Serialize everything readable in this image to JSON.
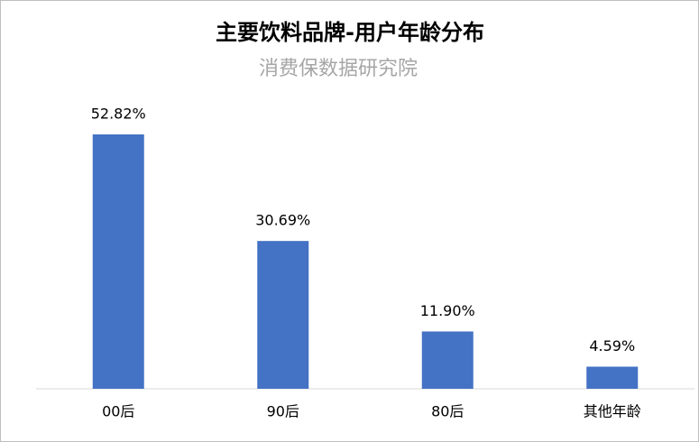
{
  "chart_data": {
    "type": "bar",
    "title": "主要饮料品牌-用户年龄分布",
    "subtitle": "消费保数据研究院",
    "categories": [
      "00后",
      "90后",
      "80后",
      "其他年龄"
    ],
    "values": [
      52.82,
      30.69,
      11.9,
      4.59
    ],
    "value_labels": [
      "52.82%",
      "30.69%",
      "11.90%",
      "4.59%"
    ],
    "color": "#4472c4"
  }
}
